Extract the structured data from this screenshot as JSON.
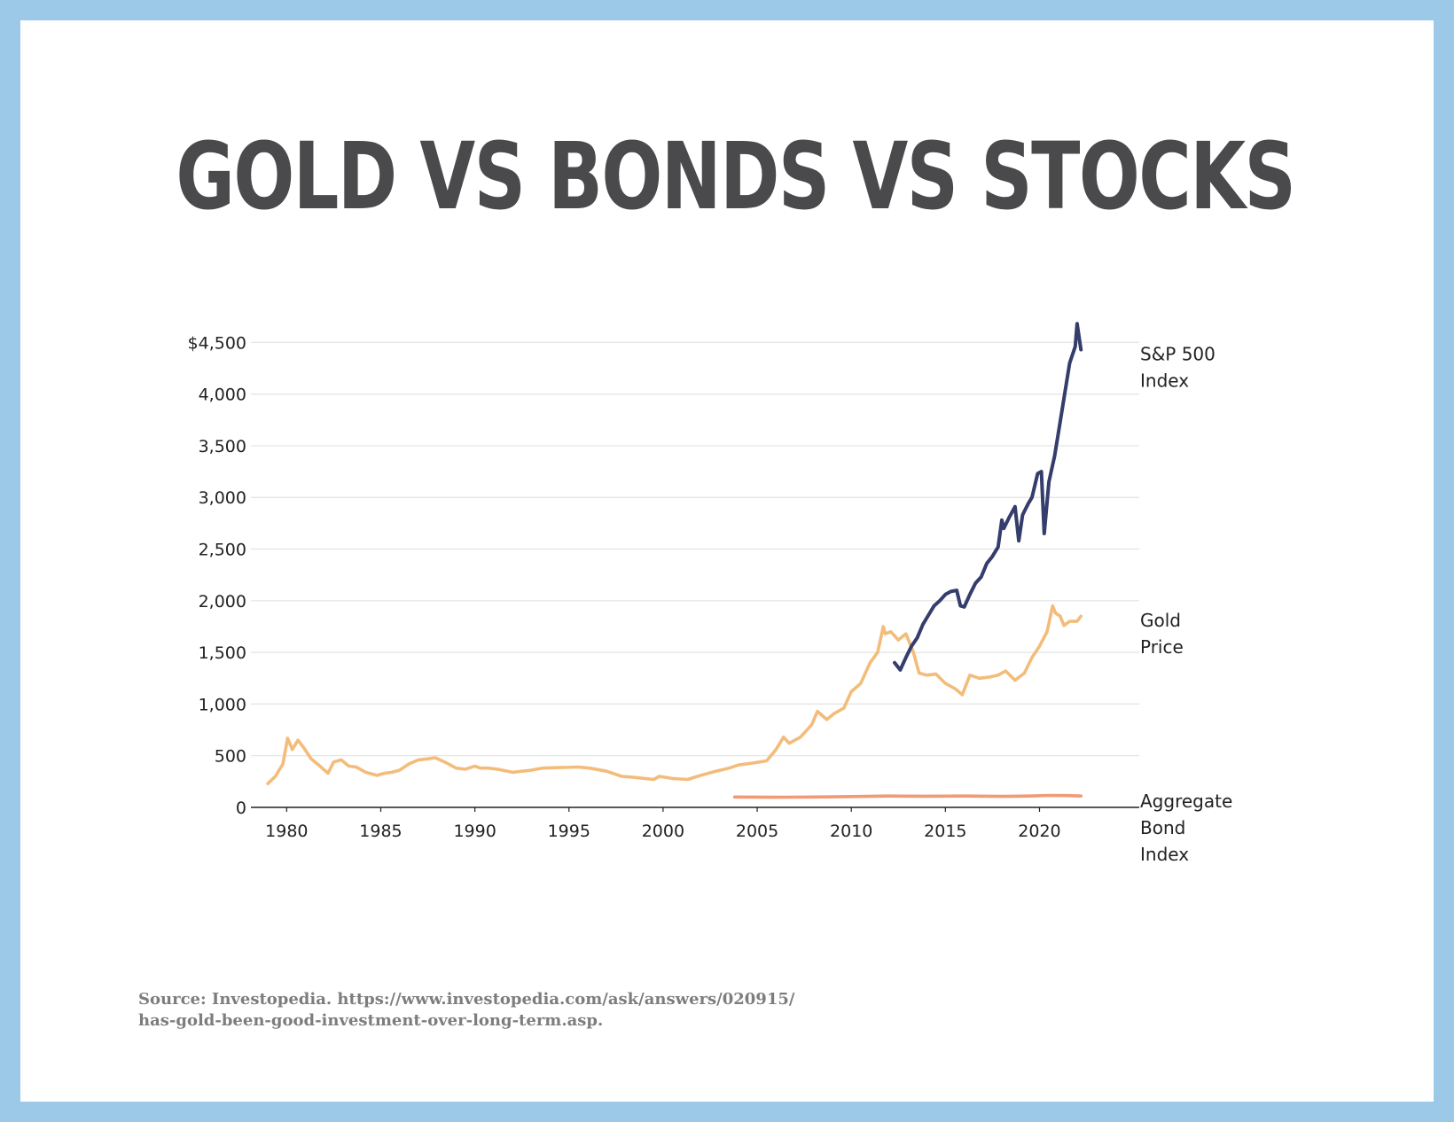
{
  "title": "GOLD VS BONDS VS STOCKS",
  "source": {
    "line1": "Source: Investopedia. https://www.investopedia.com/ask/answers/020915/",
    "line2": "has-gold-been-good-investment-over-long-term.asp."
  },
  "colors": {
    "sp500": "#343d6b",
    "gold": "#f3bc7a",
    "bond": "#f09a76",
    "grid": "#e3e3e3",
    "axis": "#222222",
    "text": "#222222"
  },
  "chart_data": {
    "type": "line",
    "title": "",
    "xlabel": "",
    "ylabel": "",
    "xlim": [
      1978.1,
      2025.3
    ],
    "ylim": [
      0,
      4700
    ],
    "xticks": [
      "1980",
      "1985",
      "1990",
      "1995",
      "2000",
      "2005",
      "2010",
      "2015",
      "2020"
    ],
    "yticks": [
      "0",
      "500",
      "1,000",
      "1,500",
      "2,000",
      "2,500",
      "3,000",
      "3,500",
      "4,000",
      "$4,500"
    ],
    "grid": true,
    "legend": "direct labels at right end of lines",
    "series": [
      {
        "name": "S&P 500 Index",
        "label_lines": [
          "S&P 500",
          "Index"
        ],
        "color": "#343d6b",
        "x": [
          2012.3,
          2012.6,
          2012.9,
          2013.2,
          2013.5,
          2013.8,
          2014.1,
          2014.4,
          2014.7,
          2015.0,
          2015.3,
          2015.6,
          2015.8,
          2016.0,
          2016.3,
          2016.6,
          2016.9,
          2017.2,
          2017.5,
          2017.8,
          2018.0,
          2018.1,
          2018.4,
          2018.7,
          2018.9,
          2019.1,
          2019.4,
          2019.6,
          2019.9,
          2020.1,
          2020.25,
          2020.5,
          2020.8,
          2021.0,
          2021.3,
          2021.6,
          2021.9,
          2022.0,
          2022.2
        ],
        "values": [
          1400,
          1330,
          1450,
          1560,
          1640,
          1770,
          1860,
          1950,
          2000,
          2060,
          2090,
          2100,
          1950,
          1940,
          2060,
          2170,
          2230,
          2360,
          2430,
          2520,
          2780,
          2700,
          2810,
          2910,
          2580,
          2830,
          2940,
          3000,
          3230,
          3250,
          2650,
          3150,
          3400,
          3620,
          3960,
          4300,
          4460,
          4680,
          4430
        ]
      },
      {
        "name": "Gold Price",
        "label_lines": [
          "Gold",
          "Price"
        ],
        "color": "#f3bc7a",
        "x": [
          1979.0,
          1979.4,
          1979.8,
          1980.05,
          1980.3,
          1980.6,
          1980.9,
          1981.3,
          1981.7,
          1982.2,
          1982.5,
          1982.9,
          1983.3,
          1983.7,
          1984.2,
          1984.8,
          1985.2,
          1985.6,
          1986.0,
          1986.5,
          1987.0,
          1987.5,
          1987.9,
          1988.5,
          1989.0,
          1989.5,
          1990.0,
          1990.3,
          1990.7,
          1991.2,
          1992.0,
          1993.0,
          1993.6,
          1994.5,
          1995.5,
          1996.1,
          1997.0,
          1997.8,
          1998.5,
          1999.5,
          1999.8,
          2000.5,
          2001.3,
          2002.0,
          2002.8,
          2003.5,
          2004.0,
          2004.8,
          2005.5,
          2006.0,
          2006.4,
          2006.7,
          2007.3,
          2007.9,
          2008.2,
          2008.7,
          2009.1,
          2009.6,
          2010.0,
          2010.5,
          2011.0,
          2011.4,
          2011.7,
          2011.8,
          2012.1,
          2012.5,
          2012.9,
          2013.3,
          2013.6,
          2014.0,
          2014.5,
          2015.0,
          2015.5,
          2015.9,
          2016.3,
          2016.8,
          2017.3,
          2017.8,
          2018.2,
          2018.7,
          2019.2,
          2019.6,
          2020.0,
          2020.4,
          2020.7,
          2020.85,
          2021.1,
          2021.3,
          2021.6,
          2022.0,
          2022.2
        ],
        "values": [
          230,
          300,
          420,
          670,
          560,
          650,
          580,
          470,
          410,
          330,
          440,
          460,
          400,
          390,
          340,
          310,
          330,
          340,
          360,
          420,
          460,
          470,
          480,
          430,
          380,
          370,
          400,
          380,
          380,
          370,
          340,
          360,
          380,
          385,
          390,
          380,
          350,
          300,
          290,
          270,
          300,
          280,
          270,
          310,
          350,
          380,
          410,
          430,
          450,
          560,
          680,
          620,
          680,
          800,
          930,
          850,
          910,
          960,
          1120,
          1200,
          1400,
          1500,
          1750,
          1680,
          1700,
          1620,
          1680,
          1500,
          1300,
          1280,
          1290,
          1200,
          1150,
          1090,
          1280,
          1250,
          1260,
          1280,
          1320,
          1230,
          1300,
          1450,
          1560,
          1700,
          1950,
          1880,
          1850,
          1760,
          1800,
          1800,
          1850
        ]
      },
      {
        "name": "Aggregate Bond Index",
        "label_lines": [
          "Aggregate",
          "Bond",
          "Index"
        ],
        "color": "#f09a76",
        "x": [
          2003.8,
          2006.0,
          2008.0,
          2010.0,
          2012.0,
          2014.0,
          2016.0,
          2018.0,
          2019.5,
          2020.5,
          2021.5,
          2022.2
        ],
        "values": [
          100,
          98,
          100,
          105,
          110,
          108,
          110,
          106,
          110,
          116,
          114,
          110
        ]
      }
    ]
  }
}
